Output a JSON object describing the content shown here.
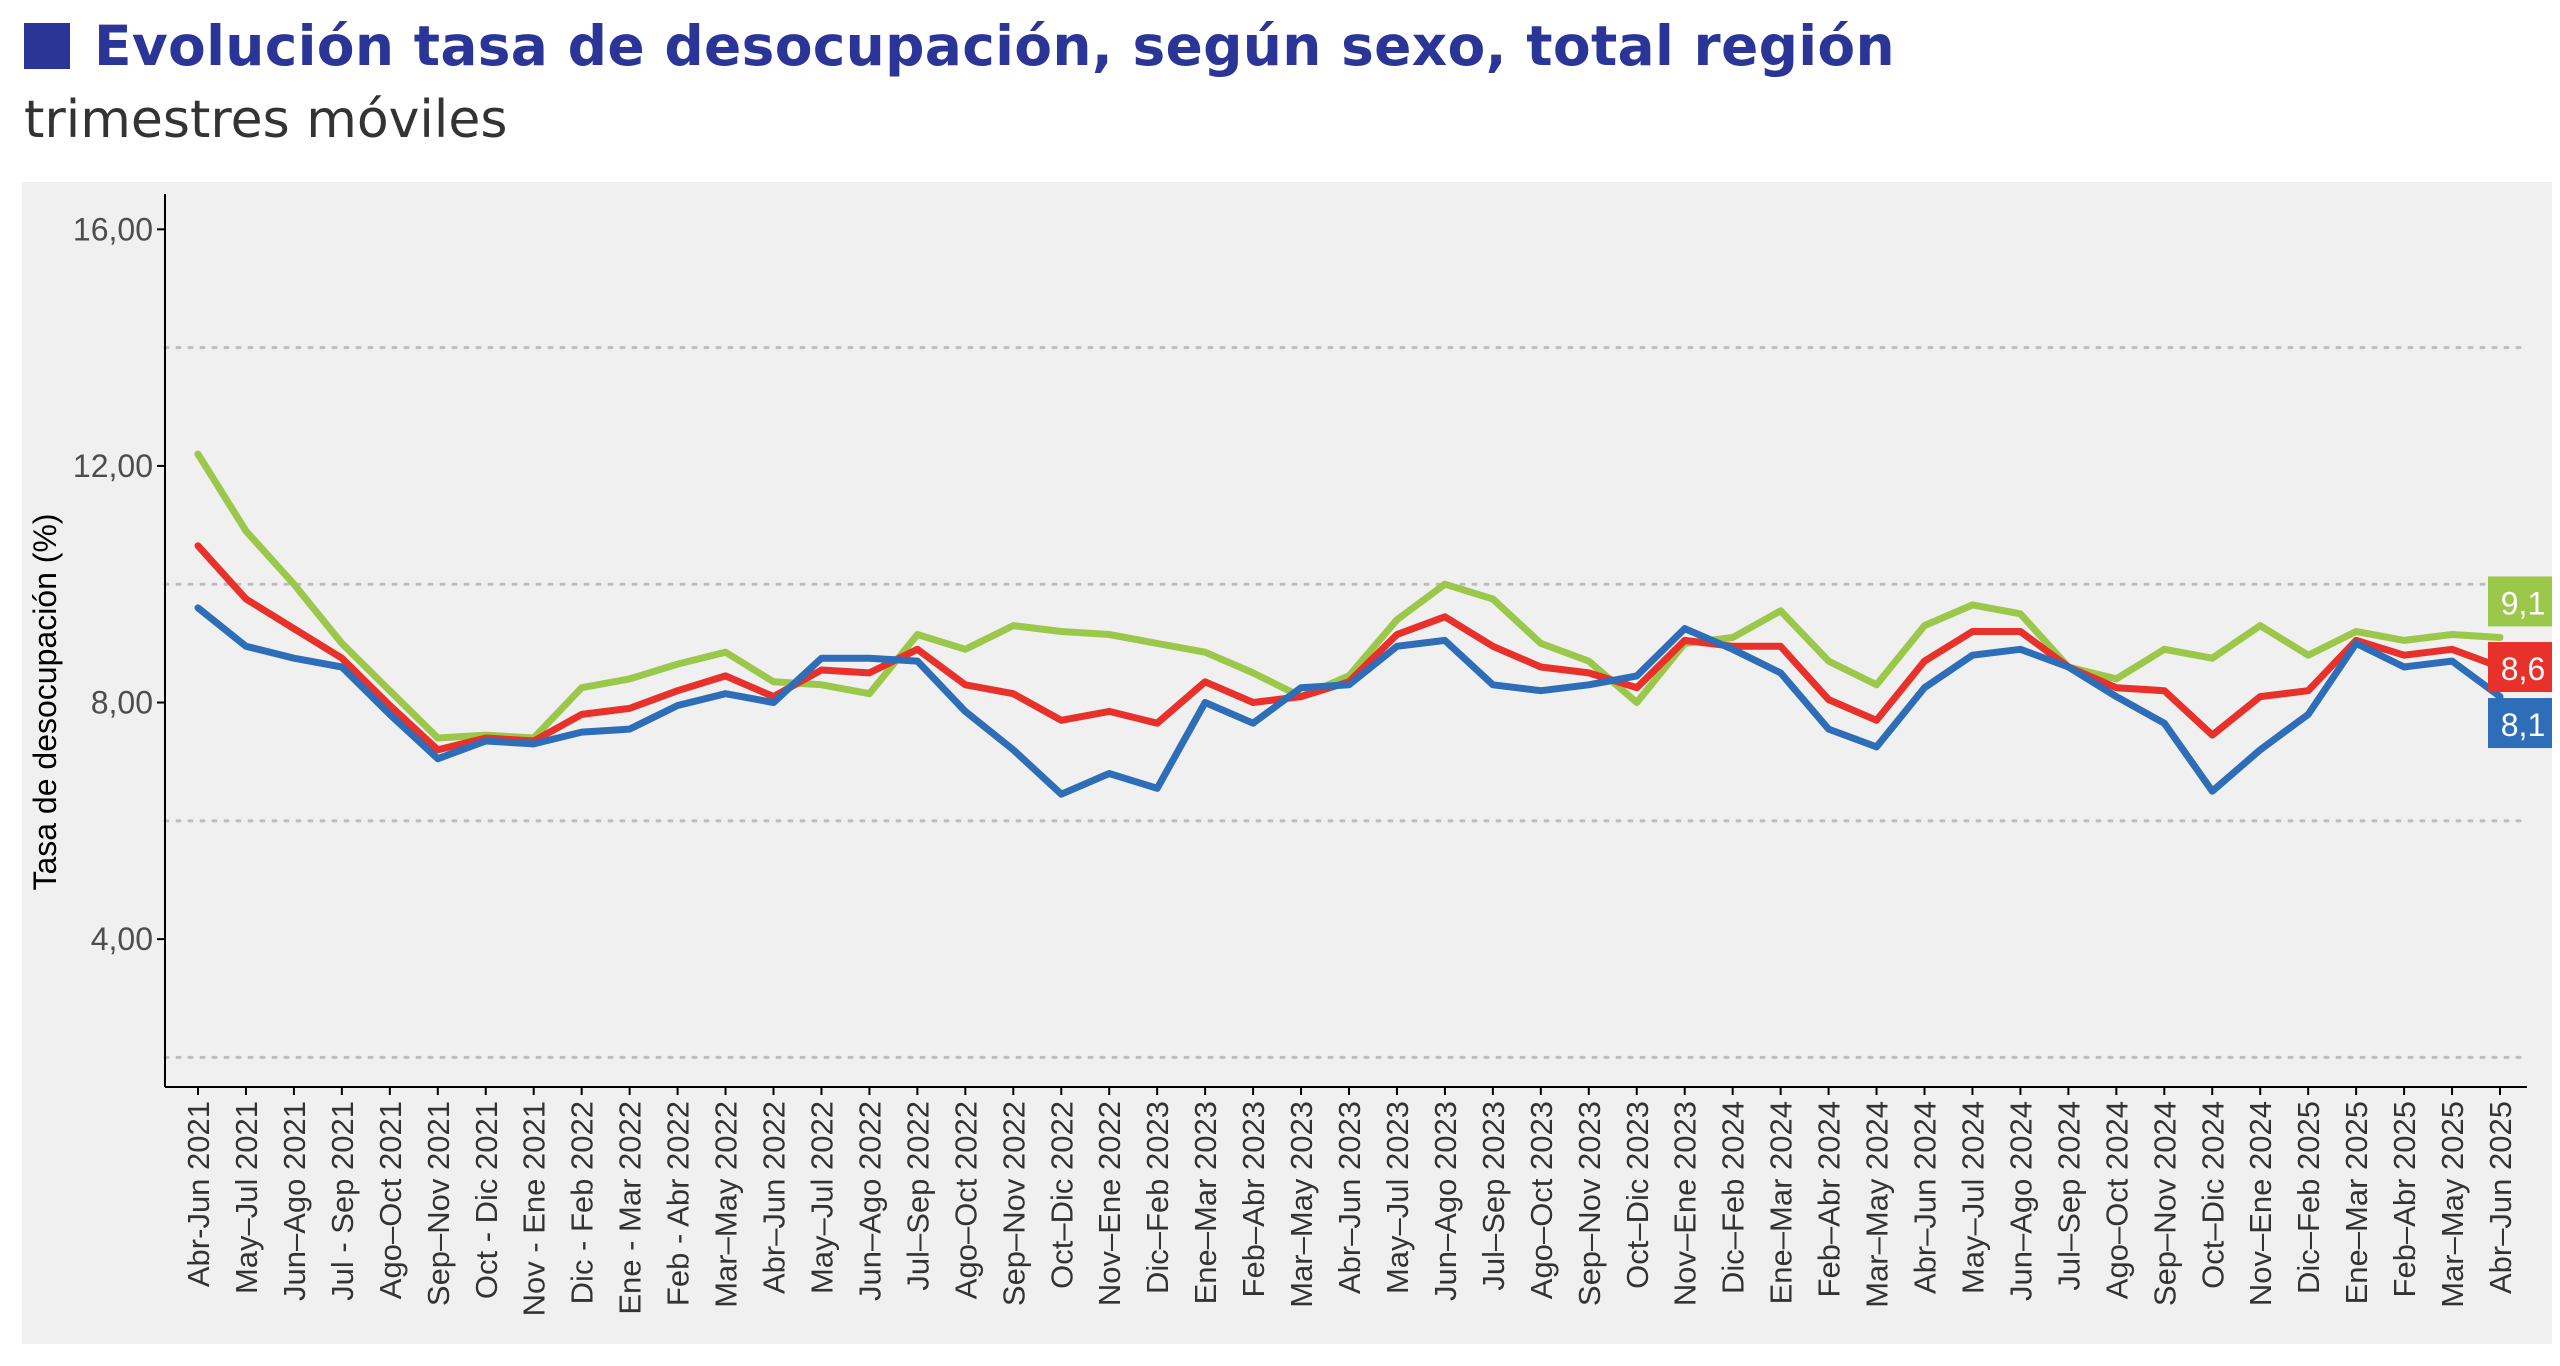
{
  "header": {
    "title": "Evolución tasa de desocupación, según sexo, total región",
    "subtitle": "trimestres móviles"
  },
  "colors": {
    "title": "#2b3598",
    "series_green": "#9bc84a",
    "series_red": "#e8312a",
    "series_blue": "#2e6eb8",
    "panel_bg": "#f0f0f0"
  },
  "chart_data": {
    "type": "line",
    "ylabel": "Tasa de desocupación (%)",
    "ylim": [
      1.5,
      16.8
    ],
    "yticks": [
      4,
      8,
      12,
      16
    ],
    "ytick_labels": [
      "4,00",
      "8,00",
      "12,00",
      "16,00"
    ],
    "grid_lines": [
      2,
      6,
      10,
      14
    ],
    "grid": "dotted horizontal",
    "categories": [
      "Abr-Jun 2021",
      "May–Jul 2021",
      "Jun–Ago 2021",
      "Jul - Sep 2021",
      "Ago–Oct 2021",
      "Sep–Nov 2021",
      "Oct - Dic 2021",
      "Nov - Ene 2021",
      "Dic - Feb 2022",
      "Ene - Mar 2022",
      "Feb - Abr 2022",
      "Mar–May 2022",
      "Abr–Jun 2022",
      "May–Jul 2022",
      "Jun–Ago 2022",
      "Jul–Sep 2022",
      "Ago–Oct 2022",
      "Sep–Nov 2022",
      "Oct–Dic 2022",
      "Nov–Ene 2022",
      "Dic–Feb 2023",
      "Ene–Mar 2023",
      "Feb–Abr 2023",
      "Mar–May 2023",
      "Abr–Jun 2023",
      "May–Jul 2023",
      "Jun–Ago 2023",
      "Jul–Sep 2023",
      "Ago–Oct 2023",
      "Sep–Nov 2023",
      "Oct–Dic 2023",
      "Nov–Ene 2023",
      "Dic–Feb 2024",
      "Ene–Mar 2024",
      "Feb–Abr 2024",
      "Mar–May 2024",
      "Abr–Jun 2024",
      "May–Jul 2024",
      "Jun–Ago 2024",
      "Jul–Sep 2024",
      "Ago–Oct 2024",
      "Sep–Nov 2024",
      "Oct–Dic 2024",
      "Nov–Ene 2024",
      "Dic–Feb 2025",
      "Ene–Mar 2025",
      "Feb–Abr 2025",
      "Mar–May 2025",
      "Abr–Jun 2025"
    ],
    "series": [
      {
        "color": "#9bc84a",
        "end_label": "9,1",
        "values": [
          12.2,
          10.9,
          10.0,
          9.0,
          8.2,
          7.4,
          7.45,
          7.4,
          8.25,
          8.4,
          8.65,
          8.85,
          8.35,
          8.3,
          8.15,
          9.15,
          8.9,
          9.3,
          9.2,
          9.15,
          9.0,
          8.85,
          8.5,
          8.1,
          8.45,
          9.4,
          10.0,
          9.75,
          9.0,
          8.7,
          8.0,
          9.0,
          9.1,
          9.55,
          8.7,
          8.3,
          9.3,
          9.65,
          9.5,
          8.6,
          8.4,
          8.9,
          8.75,
          9.3,
          8.8,
          9.2,
          9.05,
          9.15,
          9.1
        ]
      },
      {
        "color": "#e8312a",
        "end_label": "8,6",
        "values": [
          10.65,
          9.75,
          9.25,
          8.75,
          7.95,
          7.2,
          7.4,
          7.35,
          7.8,
          7.9,
          8.2,
          8.45,
          8.1,
          8.55,
          8.5,
          8.9,
          8.3,
          8.15,
          7.7,
          7.85,
          7.65,
          8.35,
          8.0,
          8.1,
          8.35,
          9.15,
          9.45,
          8.95,
          8.6,
          8.5,
          8.25,
          9.05,
          8.95,
          8.95,
          8.05,
          7.7,
          8.7,
          9.2,
          9.2,
          8.6,
          8.25,
          8.2,
          7.45,
          8.1,
          8.2,
          9.05,
          8.8,
          8.9,
          8.6
        ]
      },
      {
        "color": "#2e6eb8",
        "end_label": "8,1",
        "values": [
          9.6,
          8.95,
          8.75,
          8.6,
          7.8,
          7.05,
          7.35,
          7.3,
          7.5,
          7.55,
          7.95,
          8.15,
          8.0,
          8.75,
          8.75,
          8.7,
          7.85,
          7.2,
          6.45,
          6.8,
          6.55,
          8.0,
          7.65,
          8.25,
          8.3,
          8.95,
          9.05,
          8.3,
          8.2,
          8.3,
          8.45,
          9.25,
          8.9,
          8.5,
          7.55,
          7.25,
          8.25,
          8.8,
          8.9,
          8.6,
          8.1,
          7.65,
          6.5,
          7.2,
          7.8,
          9.0,
          8.6,
          8.7,
          8.1
        ]
      }
    ]
  }
}
